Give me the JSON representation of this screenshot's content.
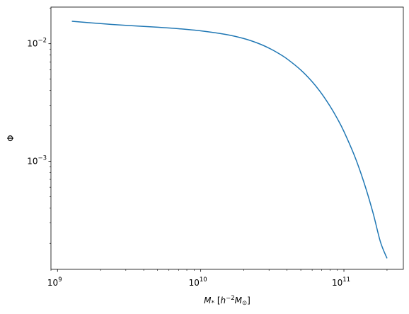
{
  "chart_data": {
    "type": "line",
    "title": "",
    "xlabel": "M* [h^-2 M_sun]",
    "ylabel": "Φ",
    "xscale": "log",
    "yscale": "log",
    "xlim": [
      900000000.0,
      260000000000.0
    ],
    "ylim": [
      0.00012,
      0.0205
    ],
    "x_ticks": [
      {
        "value": 1000000000.0,
        "base": "10",
        "exp": "9"
      },
      {
        "value": 10000000000.0,
        "base": "10",
        "exp": "10"
      },
      {
        "value": 100000000000.0,
        "base": "10",
        "exp": "11"
      }
    ],
    "y_ticks": [
      {
        "value": 0.001,
        "base": "10",
        "exp": "−3"
      },
      {
        "value": 0.01,
        "base": "10",
        "exp": "−2"
      }
    ],
    "grid": false,
    "legend": "none",
    "series": [
      {
        "color": "#1f77b4",
        "x": [
          1260000000.0,
          2000000000.0,
          3000000000.0,
          5000000000.0,
          7000000000.0,
          10000000000.0,
          15000000000.0,
          20000000000.0,
          25000000000.0,
          30000000000.0,
          35000000000.0,
          40000000000.0,
          50000000000.0,
          60000000000.0,
          70000000000.0,
          80000000000.0,
          90000000000.0,
          100000000000.0,
          120000000000.0,
          140000000000.0,
          160000000000.0,
          180000000000.0,
          200000000000.0
        ],
        "y": [
          0.01552,
          0.01483,
          0.01433,
          0.01382,
          0.01342,
          0.01287,
          0.01198,
          0.01106,
          0.01011,
          0.00917,
          0.00827,
          0.00744,
          0.00597,
          0.00475,
          0.00375,
          0.00294,
          0.0023,
          0.00179,
          0.00107,
          0.000625,
          0.00036,
          0.000205,
          0.000149
        ]
      }
    ]
  }
}
